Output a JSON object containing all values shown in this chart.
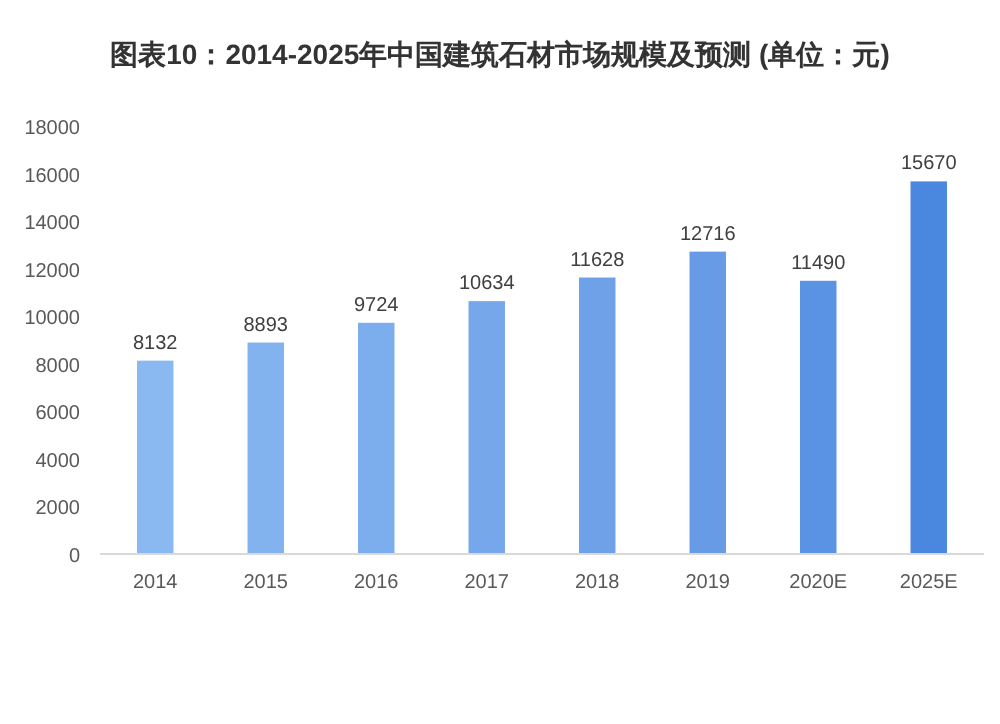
{
  "chart_data": {
    "type": "bar",
    "title": "图表10：2014-2025年中国建筑石材市场规模及预测 (单位：元)",
    "categories": [
      "2014",
      "2015",
      "2016",
      "2017",
      "2018",
      "2019",
      "2020E",
      "2025E"
    ],
    "values": [
      8132,
      8893,
      9724,
      10634,
      11628,
      12716,
      11490,
      15670
    ],
    "colors": [
      "#8ab9f1",
      "#83b3ef",
      "#7cadec",
      "#75a7ea",
      "#6ea1e8",
      "#679be6",
      "#5a92e4",
      "#4a88e0"
    ],
    "ylim": [
      0,
      18000
    ],
    "yticks": [
      0,
      2000,
      4000,
      6000,
      8000,
      10000,
      12000,
      14000,
      16000,
      18000
    ],
    "grid": false,
    "data_labels": true
  }
}
